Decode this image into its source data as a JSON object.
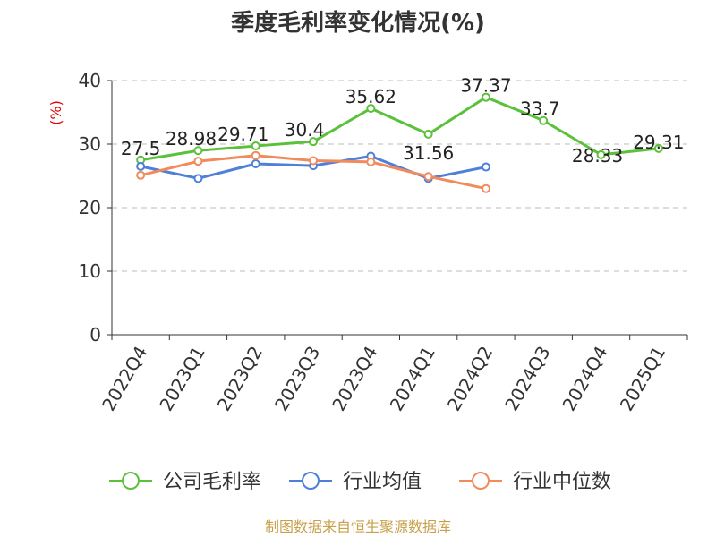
{
  "chart_data": {
    "type": "line",
    "title": "季度毛利率变化情况(%)",
    "ylabel": "(%)",
    "xlabel": "",
    "ylim": [
      0,
      40
    ],
    "yticks": [
      0,
      10,
      20,
      30,
      40
    ],
    "grid": true,
    "legend_position": "bottom",
    "categories": [
      "2022Q4",
      "2023Q1",
      "2023Q2",
      "2023Q3",
      "2023Q4",
      "2024Q1",
      "2024Q2",
      "2024Q3",
      "2024Q4",
      "2025Q1"
    ],
    "series": [
      {
        "name": "公司毛利率",
        "color": "#5cc13a",
        "values": [
          27.5,
          28.98,
          29.71,
          30.4,
          35.62,
          31.56,
          37.37,
          33.7,
          28.33,
          29.31
        ],
        "labels": [
          "27.5",
          "28.98",
          "29.71",
          "30.4",
          "35.62",
          "31.56",
          "37.37",
          "33.7",
          "28.33",
          "29.31"
        ]
      },
      {
        "name": "行业均值",
        "color": "#4e7fd9",
        "values": [
          26.5,
          24.6,
          26.9,
          26.6,
          28.1,
          24.6,
          26.4,
          null,
          null,
          null
        ]
      },
      {
        "name": "行业中位数",
        "color": "#f28b5b",
        "values": [
          25.1,
          27.3,
          28.2,
          27.4,
          27.2,
          24.9,
          23.0,
          null,
          null,
          null
        ]
      }
    ]
  },
  "footer": {
    "source": "制图数据来自恒生聚源数据库"
  }
}
